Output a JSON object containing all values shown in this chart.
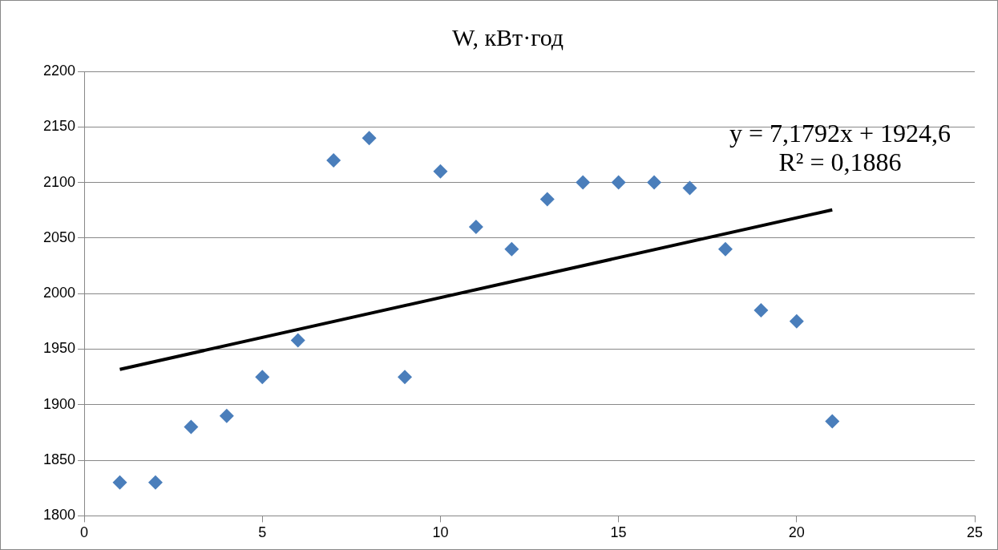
{
  "chart_data": {
    "type": "scatter",
    "title": "W, кВт·год",
    "x": [
      1,
      2,
      3,
      4,
      5,
      6,
      7,
      8,
      9,
      10,
      11,
      12,
      13,
      14,
      15,
      16,
      17,
      18,
      19,
      20,
      21
    ],
    "xlim": [
      0,
      25
    ],
    "xticks": [
      0,
      5,
      10,
      15,
      20,
      25
    ],
    "ylim": [
      1800,
      2200
    ],
    "yticks": [
      1800,
      1850,
      1900,
      1950,
      2000,
      2050,
      2100,
      2150,
      2200
    ],
    "grid": "y",
    "legend": false,
    "marker": "diamond",
    "series": [
      {
        "color": "#4a7ebb",
        "values": [
          1830,
          1830,
          1880,
          1890,
          1925,
          1958,
          2120,
          2140,
          1925,
          2110,
          2060,
          2040,
          2085,
          2100,
          2100,
          2100,
          2095,
          2040,
          1985,
          1975,
          1885
        ]
      },
      {
        "type": "line",
        "x": [
          1,
          21
        ],
        "values": [
          1931.8,
          2075.4
        ],
        "color": "#000000",
        "marker": "none"
      }
    ],
    "annotations": [
      "y = 7,1792x + 1924,6",
      "R² = 0,1886"
    ]
  }
}
